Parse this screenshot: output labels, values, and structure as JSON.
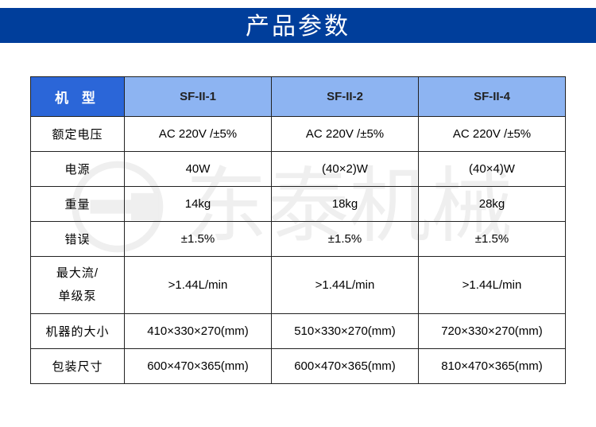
{
  "title": "产品参数",
  "colors": {
    "title_bg": "#003e9b",
    "header_label_bg": "#2b66d8",
    "header_col_bg": "#8db4f2",
    "border": "#222222",
    "text": "#222222",
    "header_text": "#ffffff"
  },
  "watermark_text": "东泰机械",
  "header": {
    "label": "机 型",
    "cols": [
      "SF-II-1",
      "SF-II-2",
      "SF-II-4"
    ]
  },
  "rows": [
    {
      "label": "额定电压",
      "cells": [
        "AC 220V /±5%",
        "AC 220V /±5%",
        "AC 220V /±5%"
      ]
    },
    {
      "label": "电源",
      "cells": [
        "40W",
        "(40×2)W",
        "(40×4)W"
      ]
    },
    {
      "label": "重量",
      "cells": [
        "14kg",
        "18kg",
        "28kg"
      ]
    },
    {
      "label": "错误",
      "cells": [
        "±1.5%",
        "±1.5%",
        "±1.5%"
      ]
    },
    {
      "label": "最大流/\n单级泵",
      "cells": [
        ">1.44L/min",
        ">1.44L/min",
        ">1.44L/min"
      ],
      "tall": true
    },
    {
      "label": "机器的大小",
      "cells": [
        "410×330×270(mm)",
        "510×330×270(mm)",
        "720×330×270(mm)"
      ]
    },
    {
      "label": "包装尺寸",
      "cells": [
        "600×470×365(mm)",
        "600×470×365(mm)",
        "810×470×365(mm)"
      ]
    }
  ]
}
